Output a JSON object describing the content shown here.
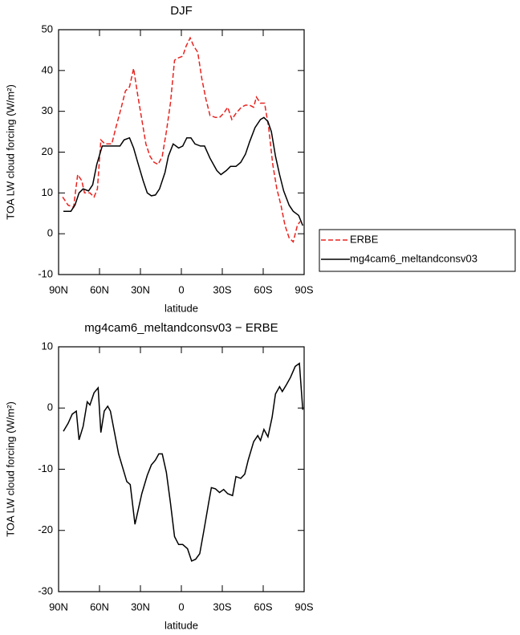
{
  "chart_data": [
    {
      "type": "line",
      "title": "DJF",
      "xlabel": "latitude",
      "ylabel": "TOA LW cloud forcing (W/m²)",
      "xlim": [
        90,
        -90
      ],
      "xticks": [
        {
          "value": 90,
          "label": "90N"
        },
        {
          "value": 60,
          "label": "60N"
        },
        {
          "value": 30,
          "label": "30N"
        },
        0,
        {
          "value": -30,
          "label": "30S"
        },
        {
          "value": -60,
          "label": "60S"
        },
        {
          "value": -90,
          "label": "90S"
        }
      ],
      "ylim": [
        -10,
        50
      ],
      "yticks": [
        -10,
        0,
        10,
        20,
        30,
        40,
        50
      ],
      "legend": "right",
      "series": [
        {
          "name": "ERBE",
          "color": "#e8231f",
          "line_style": "dashed",
          "x": [
            87,
            83,
            79,
            76,
            73,
            71,
            67,
            64,
            61.5,
            59,
            56,
            51,
            48,
            44,
            41,
            38,
            35,
            32,
            29,
            26,
            23,
            20,
            17,
            14,
            11,
            8,
            5,
            3,
            -1,
            -3.5,
            -6.5,
            -9,
            -12,
            -15,
            -18,
            -21,
            -25,
            -28,
            -31,
            -34,
            -37,
            -40,
            -44,
            -47,
            -50,
            -53,
            -55,
            -58,
            -61,
            -64,
            -67,
            -70,
            -73,
            -76,
            -79,
            -82,
            -85,
            -87
          ],
          "values": [
            9,
            7,
            6.5,
            14.5,
            13,
            10,
            10,
            9,
            11,
            23,
            22,
            22,
            26,
            31,
            35,
            36,
            40.5,
            34,
            28,
            22,
            19,
            17.5,
            17,
            19,
            25,
            32,
            42.5,
            43,
            43.5,
            46,
            48,
            46,
            44.5,
            38,
            33,
            29,
            28.5,
            28.5,
            29.5,
            31,
            28,
            29.5,
            31,
            31.5,
            31.5,
            31,
            33.5,
            32,
            32,
            26,
            17,
            11,
            7,
            2,
            -1,
            -2,
            2,
            3
          ]
        },
        {
          "name": "mg4cam6_meltandconsv03",
          "color": "#000000",
          "line_style": "solid",
          "x": [
            86.5,
            81,
            78,
            75,
            72,
            68,
            65,
            62,
            58,
            53.5,
            49,
            45,
            42,
            38,
            35,
            32,
            28,
            25,
            22,
            19,
            16,
            12,
            9.5,
            6,
            2,
            -1,
            -4,
            -7,
            -10,
            -14,
            -17,
            -21,
            -26,
            -29,
            -33,
            -36,
            -40,
            -43.5,
            -47,
            -50,
            -54,
            -58,
            -60.5,
            -63.5,
            -66,
            -69,
            -72,
            -75,
            -79,
            -82,
            -86,
            -89
          ],
          "values": [
            5.5,
            5.5,
            7,
            10,
            11,
            10.5,
            12,
            17,
            21.5,
            21.5,
            21.5,
            21.5,
            23,
            23.5,
            21,
            17.5,
            13,
            10,
            9.3,
            9.5,
            11,
            15,
            19,
            22,
            21,
            21.5,
            23.5,
            23.5,
            22,
            21.5,
            21.5,
            18.5,
            15.5,
            14.5,
            15.5,
            16.5,
            16.5,
            17.5,
            19.5,
            22.5,
            26,
            28,
            28.5,
            27.5,
            25,
            19,
            14.5,
            10.5,
            7,
            5.5,
            4.5,
            2
          ]
        }
      ]
    },
    {
      "type": "line",
      "title": "mg4cam6_meltandconsv03 − ERBE",
      "xlabel": "latitude",
      "ylabel": "TOA LW cloud forcing (W/m²)",
      "xlim": [
        90,
        -90
      ],
      "xticks": [
        {
          "value": 90,
          "label": "90N"
        },
        {
          "value": 60,
          "label": "60N"
        },
        {
          "value": 30,
          "label": "30N"
        },
        0,
        {
          "value": -30,
          "label": "30S"
        },
        {
          "value": -60,
          "label": "60S"
        },
        {
          "value": -90,
          "label": "90S"
        }
      ],
      "ylim": [
        -30,
        10
      ],
      "yticks": [
        -30,
        -20,
        -10,
        0,
        10
      ],
      "series": [
        {
          "color": "#000000",
          "line_style": "solid",
          "x": [
            86.5,
            83,
            80,
            77,
            75,
            72,
            69,
            67,
            64,
            61,
            59,
            56.5,
            54,
            52,
            49,
            46,
            42,
            40,
            37.5,
            34,
            31,
            29,
            25,
            22,
            19,
            16.5,
            14,
            11,
            8,
            5,
            2,
            -1,
            -4.5,
            -7.5,
            -10.5,
            -13.5,
            -16.5,
            -20,
            -22,
            -25,
            -28,
            -31,
            -34,
            -37.5,
            -40,
            -43.5,
            -46.5,
            -49,
            -53,
            -56,
            -58,
            -60.5,
            -63.5,
            -66.5,
            -69,
            -72,
            -74,
            -77,
            -80,
            -83.5,
            -86.5,
            -89
          ],
          "values": [
            -3.8,
            -2.5,
            -1,
            -0.5,
            -5.2,
            -3,
            1,
            0.5,
            2.5,
            3.3,
            -4,
            -0.5,
            0.3,
            -0.5,
            -4,
            -7.5,
            -10.5,
            -12,
            -12.5,
            -19,
            -16,
            -14,
            -11,
            -9.3,
            -8.5,
            -7.5,
            -7.5,
            -10.5,
            -15.5,
            -21,
            -22.3,
            -22.3,
            -23,
            -25,
            -24.7,
            -23.8,
            -20,
            -15.5,
            -13,
            -13.2,
            -13.8,
            -13.3,
            -14,
            -14.3,
            -11.2,
            -11.5,
            -10.8,
            -8.5,
            -5.5,
            -4.5,
            -5.3,
            -3.5,
            -4.7,
            -1.5,
            2.3,
            3.5,
            2.7,
            3.8,
            5,
            6.8,
            7.3,
            -0.3
          ]
        }
      ]
    }
  ]
}
